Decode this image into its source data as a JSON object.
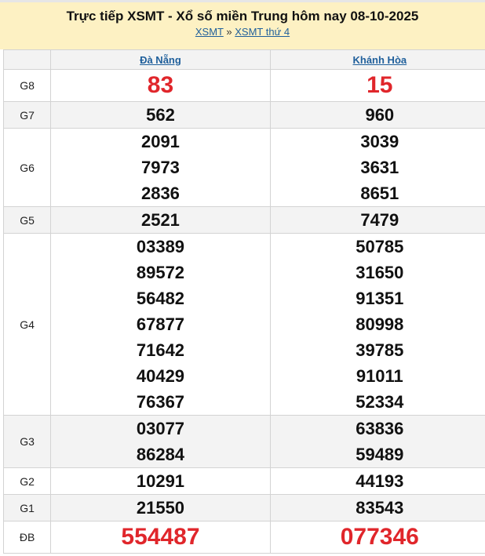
{
  "title": "Trực tiếp XSMT - Xổ số miền Trung hôm nay 08-10-2025",
  "breadcrumb": {
    "home": "XSMT",
    "sep": "»",
    "current": "XSMT thứ 4"
  },
  "provinces": [
    "Đà Nẵng",
    "Khánh Hòa"
  ],
  "colors": {
    "special": "#e0262b",
    "link": "#1f5f9b",
    "banner": "#fdf1c3"
  },
  "prizes": [
    {
      "label": "G8",
      "big": true,
      "cols": [
        [
          "83"
        ],
        [
          "15"
        ]
      ]
    },
    {
      "label": "G7",
      "cols": [
        [
          "562"
        ],
        [
          "960"
        ]
      ]
    },
    {
      "label": "G6",
      "cols": [
        [
          "2091",
          "7973",
          "2836"
        ],
        [
          "3039",
          "3631",
          "8651"
        ]
      ]
    },
    {
      "label": "G5",
      "cols": [
        [
          "2521"
        ],
        [
          "7479"
        ]
      ]
    },
    {
      "label": "G4",
      "cols": [
        [
          "03389",
          "89572",
          "56482",
          "67877",
          "71642",
          "40429",
          "76367"
        ],
        [
          "50785",
          "31650",
          "91351",
          "80998",
          "39785",
          "91011",
          "52334"
        ]
      ]
    },
    {
      "label": "G3",
      "cols": [
        [
          "03077",
          "86284"
        ],
        [
          "63836",
          "59489"
        ]
      ]
    },
    {
      "label": "G2",
      "cols": [
        [
          "10291"
        ],
        [
          "44193"
        ]
      ]
    },
    {
      "label": "G1",
      "cols": [
        [
          "21550"
        ],
        [
          "83543"
        ]
      ]
    },
    {
      "label": "ĐB",
      "big": true,
      "cols": [
        [
          "554487"
        ],
        [
          "077346"
        ]
      ]
    }
  ]
}
